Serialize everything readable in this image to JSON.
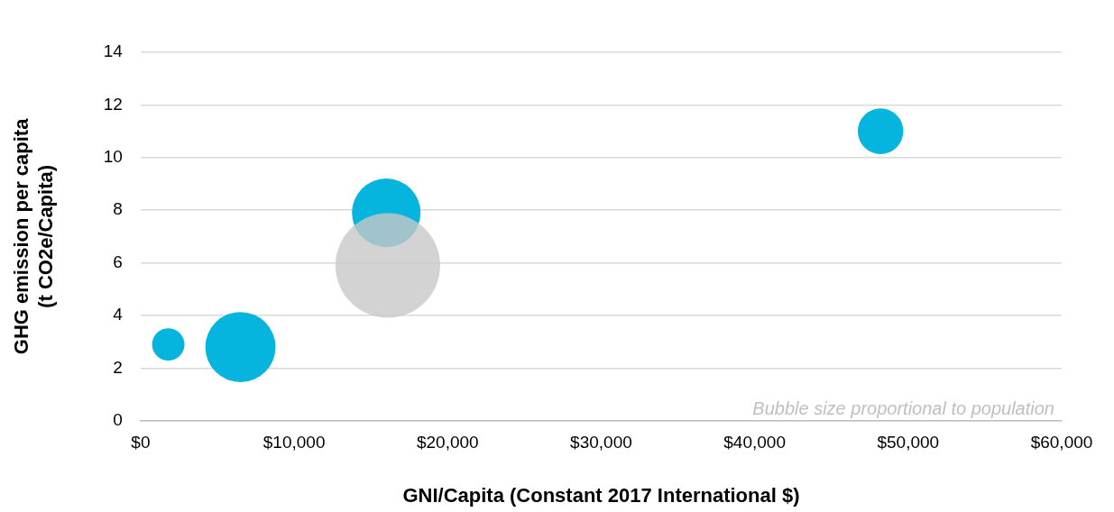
{
  "chart_data": {
    "type": "bubble",
    "xlabel": "GNI/Capita (Constant 2017 International $)",
    "ylabel": "GHG emission per capita\n(t CO2e/Capita)",
    "x": [
      1800,
      6500,
      16000,
      16100,
      48200
    ],
    "values": [
      2.9,
      2.8,
      7.9,
      5.9,
      11.0
    ],
    "sizes": [
      0.096,
      0.45,
      0.43,
      1,
      0.19
    ],
    "colors": [
      "#00b4dc",
      "#00b4dc",
      "#00b4dc",
      "#c8c8c8",
      "#00b4dc"
    ],
    "xlim": [
      0,
      60000
    ],
    "xticks": [
      {
        "value": 0,
        "label": "$0"
      },
      {
        "value": 10000,
        "label": "$10,000"
      },
      {
        "value": 20000,
        "label": "$20,000"
      },
      {
        "value": 30000,
        "label": "$30,000"
      },
      {
        "value": 40000,
        "label": "$40,000"
      },
      {
        "value": 50000,
        "label": "$50,000"
      },
      {
        "value": 60000,
        "label": "$60,000"
      }
    ],
    "ylim": [
      0,
      14
    ],
    "yticks": [
      0,
      2,
      4,
      6,
      8,
      10,
      12,
      14
    ],
    "grid": "y",
    "legend": false,
    "annotations": [
      "Bubble size proportional to population"
    ]
  }
}
